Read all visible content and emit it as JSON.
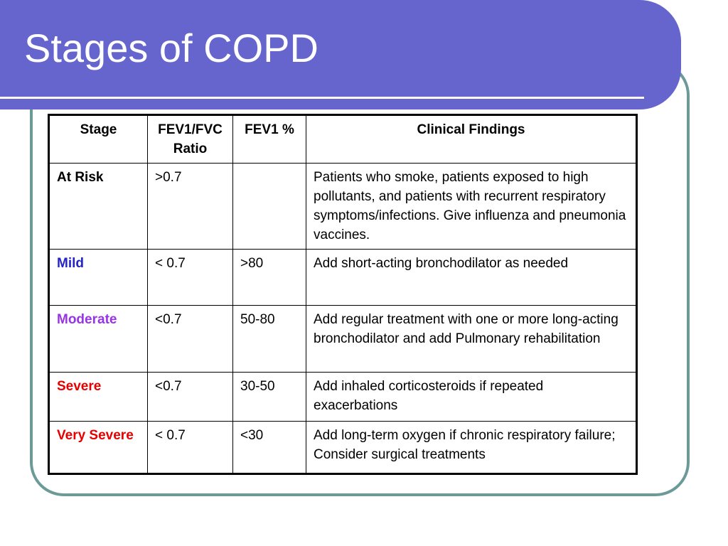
{
  "slide": {
    "title": "Stages of COPD",
    "colors": {
      "title_bar": "#6565cd",
      "frame_border": "#6b9a97",
      "title_text": "#ffffff"
    }
  },
  "table": {
    "headers": [
      "Stage",
      "FEV1/FVC Ratio",
      "FEV1 %",
      "Clinical Findings"
    ],
    "rows": [
      {
        "stage": "At Risk",
        "stage_color": "#000000",
        "ratio": ">0.7",
        "fev1": "",
        "findings": "Patients who smoke, patients exposed to high pollutants, and patients with recurrent respiratory symptoms/infections.  Give influenza and pneumonia vaccines."
      },
      {
        "stage": "Mild",
        "stage_color": "#2424c8",
        "ratio": "< 0.7",
        "fev1": ">80",
        "findings": "Add short-acting bronchodilator as needed"
      },
      {
        "stage": "Moderate",
        "stage_color": "#9933e6",
        "ratio": "<0.7",
        "fev1": "50-80",
        "findings": "Add regular treatment with one or more long-acting bronchodilator and add Pulmonary rehabilitation"
      },
      {
        "stage": "Severe",
        "stage_color": "#e60000",
        "ratio": "<0.7",
        "fev1": "30-50",
        "findings": "Add inhaled corticosteroids if repeated exacerbations"
      },
      {
        "stage": "Very Severe",
        "stage_color": "#e60000",
        "ratio": "< 0.7",
        "fev1": "<30",
        "findings": "Add long-term oxygen if chronic respiratory failure;  Consider surgical treatments"
      }
    ]
  }
}
